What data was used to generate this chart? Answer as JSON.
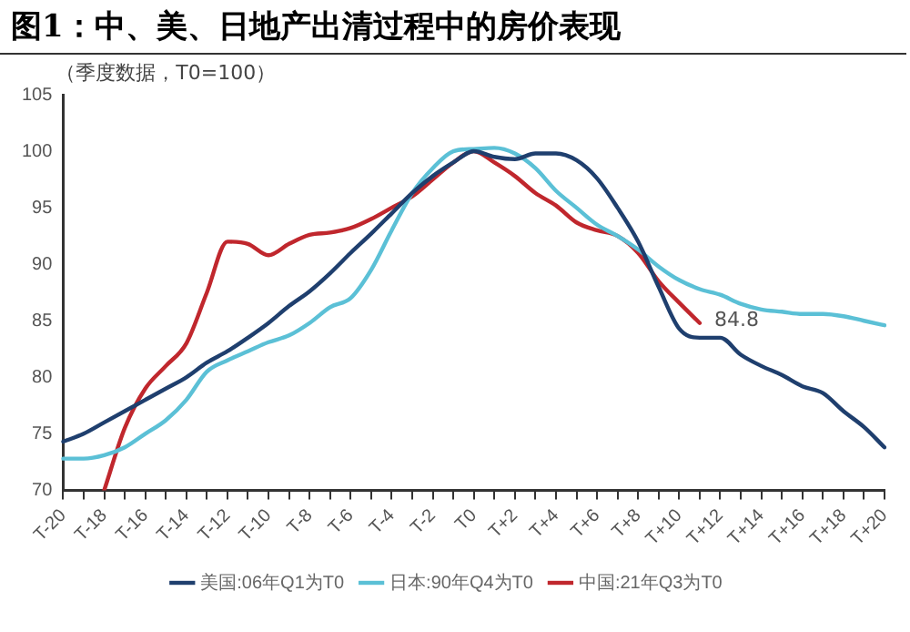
{
  "chart_data": {
    "type": "line",
    "title": "图1：中、美、日地产出清过程中的房价表现",
    "ylabel": "（季度数据，T0=100）",
    "categories": [
      "T-20",
      null,
      "T-18",
      null,
      "T-16",
      null,
      "T-14",
      null,
      "T-12",
      null,
      "T-10",
      null,
      "T-8",
      null,
      "T-6",
      null,
      "T-4",
      null,
      "T-2",
      null,
      "T0",
      null,
      "T+2",
      null,
      "T+4",
      null,
      "T+6",
      null,
      "T+8",
      null,
      "T+10",
      null,
      "T+12",
      null,
      "T+14",
      null,
      "T+16",
      null,
      "T+18",
      null,
      "T+20"
    ],
    "series": [
      {
        "name": "美国:06年Q1为T0",
        "color": "#1f3f6e",
        "values": [
          74.3,
          75,
          76,
          77,
          78,
          79,
          80,
          81.3,
          82.3,
          83.5,
          84.8,
          86.3,
          87.6,
          89.2,
          91,
          92.7,
          94.5,
          96.3,
          97.8,
          99,
          100,
          99.5,
          99.3,
          99.8,
          99.8,
          99.2,
          97.6,
          95,
          92,
          88,
          84.3,
          83.5,
          83.5,
          82,
          81,
          80.2,
          79.2,
          78.6,
          77,
          75.6,
          73.8
        ]
      },
      {
        "name": "日本:90年Q4为T0",
        "color": "#5bc0d6",
        "values": [
          72.8,
          72.8,
          73.1,
          73.8,
          75,
          76.2,
          78,
          80.5,
          81.5,
          82.3,
          83.1,
          83.7,
          84.8,
          86.2,
          87,
          89.5,
          93,
          96.3,
          98.5,
          100,
          100.2,
          100.3,
          99.8,
          98.5,
          96.5,
          95,
          93.5,
          92.5,
          91.3,
          89.8,
          88.6,
          87.8,
          87.3,
          86.5,
          86,
          85.8,
          85.6,
          85.6,
          85.4,
          85,
          84.6
        ]
      },
      {
        "name": "中国:21年Q3为T0",
        "color": "#c0272d",
        "values": [
          null,
          null,
          70,
          75.5,
          79,
          81,
          83,
          87.5,
          92,
          91.8,
          90.8,
          91.8,
          92.6,
          92.8,
          93.2,
          94,
          95,
          96,
          97.5,
          99,
          100,
          99,
          97.8,
          96.3,
          95.2,
          93.7,
          93,
          92.5,
          91,
          88.5,
          86.6,
          84.8,
          null,
          null,
          null,
          null,
          null,
          null,
          null,
          null,
          null
        ],
        "value_labels": [
          null,
          null,
          null,
          null,
          null,
          null,
          null,
          null,
          null,
          null,
          null,
          null,
          null,
          null,
          null,
          null,
          null,
          null,
          null,
          null,
          null,
          null,
          null,
          null,
          null,
          null,
          null,
          null,
          null,
          null,
          null,
          "84.8",
          null,
          null,
          null,
          null,
          null,
          null,
          null,
          null,
          null
        ]
      }
    ],
    "ylim": [
      70,
      105
    ],
    "yticks": [
      70,
      75,
      80,
      85,
      90,
      95,
      100,
      105
    ],
    "grid": false,
    "legend": "bottom",
    "marker": "none",
    "line_style": "solid"
  }
}
